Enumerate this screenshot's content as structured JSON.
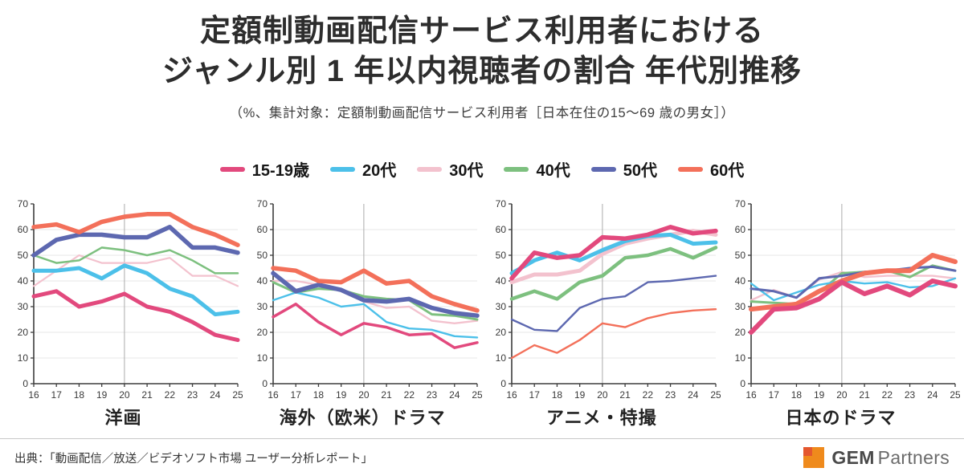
{
  "header": {
    "title_line1": "定額制動画配信サービス利用者における",
    "title_line2": "ジャンル別 1 年以内視聴者の割合 年代別推移",
    "subtitle": "（%、集計対象：定額制動画配信サービス利用者［日本在住の15～69 歳の男女］）"
  },
  "legend": {
    "items": [
      {
        "label": "15-19歳",
        "color": "#e2497d"
      },
      {
        "label": "20代",
        "color": "#4cc0e9"
      },
      {
        "label": "30代",
        "color": "#f3c2ce"
      },
      {
        "label": "40代",
        "color": "#7dc07f"
      },
      {
        "label": "50代",
        "color": "#5d68b0"
      },
      {
        "label": "60代",
        "color": "#f3705a"
      }
    ]
  },
  "chart_data": [
    {
      "type": "line",
      "title": "洋画",
      "x": [
        16,
        17,
        18,
        19,
        20,
        21,
        22,
        23,
        24,
        25
      ],
      "ylim": [
        0,
        70
      ],
      "ytick_step": 10,
      "ref_line_x": 20,
      "grid": "horizontal",
      "series": [
        {
          "name": "15-19歳",
          "stroke_width": 5.0,
          "values": [
            34,
            36,
            30,
            32,
            35,
            30,
            28,
            24,
            19,
            17
          ]
        },
        {
          "name": "20代",
          "stroke_width": 5.0,
          "values": [
            44,
            44,
            45,
            41,
            46,
            43,
            37,
            34,
            27,
            28
          ]
        },
        {
          "name": "30代",
          "stroke_width": 2.2,
          "values": [
            38,
            44,
            50,
            47,
            47,
            47,
            49,
            42,
            42,
            38
          ]
        },
        {
          "name": "40代",
          "stroke_width": 2.5,
          "values": [
            50,
            47,
            48,
            53,
            52,
            50,
            52,
            48,
            43,
            43
          ]
        },
        {
          "name": "50代",
          "stroke_width": 5.5,
          "values": [
            50,
            56,
            58,
            58,
            57,
            57,
            61,
            53,
            53,
            51
          ]
        },
        {
          "name": "60代",
          "stroke_width": 5.5,
          "values": [
            61,
            62,
            59,
            63,
            65,
            66,
            66,
            61,
            58,
            54
          ]
        }
      ]
    },
    {
      "type": "line",
      "title": "海外（欧米）ドラマ",
      "x": [
        16,
        17,
        18,
        19,
        20,
        21,
        22,
        23,
        24,
        25
      ],
      "ylim": [
        0,
        70
      ],
      "ytick_step": 10,
      "ref_line_x": 20,
      "grid": "horizontal",
      "series": [
        {
          "name": "15-19歳",
          "stroke_width": 3.5,
          "values": [
            26,
            31,
            24,
            19,
            23.5,
            22,
            19,
            19.5,
            14,
            16
          ]
        },
        {
          "name": "20代",
          "stroke_width": 2.4,
          "values": [
            32.5,
            35.5,
            33.5,
            30,
            31,
            24,
            21.5,
            21,
            18.5,
            18
          ]
        },
        {
          "name": "30代",
          "stroke_width": 2.4,
          "values": [
            40,
            40,
            38.5,
            36.5,
            32,
            29.5,
            30,
            24.5,
            23.5,
            24.5
          ]
        },
        {
          "name": "40代",
          "stroke_width": 3.0,
          "values": [
            39.5,
            35.5,
            37,
            36.5,
            34,
            33,
            32.5,
            27,
            26.5,
            25
          ]
        },
        {
          "name": "50代",
          "stroke_width": 5.5,
          "values": [
            43,
            36,
            38.5,
            36.5,
            32.5,
            32,
            33,
            29.5,
            27.5,
            26.5
          ]
        },
        {
          "name": "60代",
          "stroke_width": 5.5,
          "values": [
            45,
            44,
            40,
            39.5,
            44,
            39,
            40,
            34,
            31,
            28.5
          ]
        }
      ]
    },
    {
      "type": "line",
      "title": "アニメ・特撮",
      "x": [
        16,
        17,
        18,
        19,
        20,
        21,
        22,
        23,
        24,
        25
      ],
      "ylim": [
        0,
        70
      ],
      "ytick_step": 10,
      "ref_line_x": 20,
      "grid": "horizontal",
      "series": [
        {
          "name": "15-19歳",
          "stroke_width": 5.5,
          "values": [
            41,
            51,
            49,
            50,
            57,
            56.5,
            58,
            61,
            58.5,
            59.5
          ]
        },
        {
          "name": "20代",
          "stroke_width": 5.0,
          "values": [
            43,
            48,
            51,
            48,
            52,
            55.5,
            57.5,
            58,
            54.5,
            55
          ]
        },
        {
          "name": "30代",
          "stroke_width": 5.0,
          "values": [
            39.5,
            42.5,
            42.5,
            44,
            50.5,
            54.5,
            56.5,
            58,
            59.5,
            58
          ]
        },
        {
          "name": "40代",
          "stroke_width": 4.5,
          "values": [
            33,
            36,
            33,
            39.5,
            42,
            49,
            50,
            52.5,
            49,
            53
          ]
        },
        {
          "name": "50代",
          "stroke_width": 2.4,
          "values": [
            25,
            21,
            20.5,
            29.5,
            33,
            34,
            39.5,
            40,
            41,
            42
          ]
        },
        {
          "name": "60代",
          "stroke_width": 2.4,
          "values": [
            10,
            15,
            12,
            17,
            23.5,
            22,
            25.5,
            27.5,
            28.5,
            29
          ]
        }
      ]
    },
    {
      "type": "line",
      "title": "日本のドラマ",
      "x": [
        16,
        17,
        18,
        19,
        20,
        21,
        22,
        23,
        24,
        25
      ],
      "ylim": [
        0,
        70
      ],
      "ytick_step": 10,
      "ref_line_x": 20,
      "grid": "horizontal",
      "series": [
        {
          "name": "15-19歳",
          "stroke_width": 6.0,
          "values": [
            20,
            29,
            29.5,
            33,
            39.5,
            35,
            38,
            34.5,
            40,
            38
          ]
        },
        {
          "name": "20代",
          "stroke_width": 2.4,
          "values": [
            39,
            32.5,
            35.5,
            38.5,
            40,
            39,
            39.5,
            37.5,
            38,
            41
          ]
        },
        {
          "name": "30代",
          "stroke_width": 2.4,
          "values": [
            32.5,
            36.5,
            33.5,
            40.5,
            43.5,
            41.5,
            42,
            42,
            42,
            41
          ]
        },
        {
          "name": "40代",
          "stroke_width": 3.0,
          "values": [
            32,
            31.5,
            31,
            35.5,
            43,
            43.5,
            44,
            41.5,
            46,
            44
          ]
        },
        {
          "name": "50代",
          "stroke_width": 3.0,
          "values": [
            37,
            36,
            33.5,
            41,
            42,
            43.5,
            44,
            45,
            45.5,
            44
          ]
        },
        {
          "name": "60代",
          "stroke_width": 6.0,
          "values": [
            29,
            30,
            31,
            36,
            40,
            43,
            44,
            44,
            50,
            47.5
          ]
        }
      ]
    }
  ],
  "chart_style": {
    "axis_color": "#3d3d3d",
    "grid_color": "#e7e7e7",
    "ref_line_color": "#ababab",
    "tick_label_color": "#3a3a3a",
    "draw_order": [
      2,
      3,
      1,
      4,
      5,
      0
    ]
  },
  "footer": {
    "source": "出典：「動画配信／放送／ビデオソフト市場 ユーザー分析レポート」",
    "logo": {
      "mark_color": "#ef8a1c",
      "mark_accent_color": "#e4572e",
      "text_bold": "GEM",
      "text_regular": "Partners"
    }
  }
}
